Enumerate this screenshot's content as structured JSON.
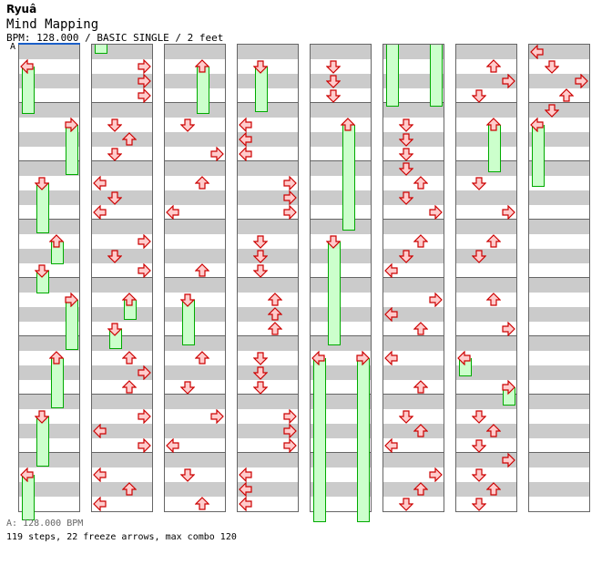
{
  "artist": "Ryuâ",
  "title": "Mind Mapping",
  "meta": "BPM: 128.000 / BASIC SINGLE / 2 feet",
  "bpm_marker": "A",
  "footer_bpm": "A: 128.000 BPM",
  "footer_stats": "119 steps, 22 freeze arrows, max combo 120",
  "colors": {
    "arrow_fill": "#ffcccc",
    "arrow_stroke": "#cc0000",
    "freeze_fill": "#ccffcc",
    "freeze_stroke": "#00aa00",
    "stripe": "#cbcbcb",
    "bpm_line": "#1a5fc8"
  },
  "lanes": [
    "left",
    "down",
    "up",
    "right"
  ],
  "columns": [
    {
      "notes": [
        {
          "lane": 0,
          "row": 1,
          "hold": 3.5
        },
        {
          "lane": 3,
          "row": 5,
          "hold": 3.7
        },
        {
          "lane": 1,
          "row": 9,
          "hold": 3.7
        },
        {
          "lane": 2,
          "row": 13,
          "hold": 1.8
        },
        {
          "lane": 1,
          "row": 15,
          "hold": 1.8
        },
        {
          "lane": 3,
          "row": 17,
          "hold": 3.7
        },
        {
          "lane": 2,
          "row": 21,
          "hold": 3.7
        },
        {
          "lane": 1,
          "row": 25,
          "hold": 3.7
        },
        {
          "lane": 0,
          "row": 29,
          "hold": 3.4
        }
      ]
    },
    {
      "carry": [
        {
          "lane": 0,
          "end": 0.9
        }
      ],
      "notes": [
        {
          "lane": 3,
          "row": 1
        },
        {
          "lane": 3,
          "row": 2
        },
        {
          "lane": 3,
          "row": 3
        },
        {
          "lane": 1,
          "row": 5
        },
        {
          "lane": 2,
          "row": 6
        },
        {
          "lane": 1,
          "row": 7
        },
        {
          "lane": 0,
          "row": 9
        },
        {
          "lane": 1,
          "row": 10
        },
        {
          "lane": 0,
          "row": 11
        },
        {
          "lane": 3,
          "row": 13
        },
        {
          "lane": 1,
          "row": 14
        },
        {
          "lane": 3,
          "row": 15
        },
        {
          "lane": 2,
          "row": 17,
          "hold": 1.6
        },
        {
          "lane": 1,
          "row": 19,
          "hold": 1.6
        },
        {
          "lane": 2,
          "row": 21
        },
        {
          "lane": 3,
          "row": 22
        },
        {
          "lane": 2,
          "row": 23
        },
        {
          "lane": 3,
          "row": 25
        },
        {
          "lane": 0,
          "row": 26
        },
        {
          "lane": 3,
          "row": 27
        },
        {
          "lane": 0,
          "row": 29
        },
        {
          "lane": 2,
          "row": 30
        },
        {
          "lane": 0,
          "row": 31
        }
      ]
    },
    {
      "notes": [
        {
          "lane": 2,
          "row": 1,
          "hold": 3.5
        },
        {
          "lane": 1,
          "row": 5
        },
        {
          "lane": 3,
          "row": 7
        },
        {
          "lane": 2,
          "row": 9
        },
        {
          "lane": 0,
          "row": 11
        },
        {
          "lane": 2,
          "row": 15
        },
        {
          "lane": 1,
          "row": 17,
          "hold": 3.4
        },
        {
          "lane": 2,
          "row": 21
        },
        {
          "lane": 1,
          "row": 23
        },
        {
          "lane": 3,
          "row": 25
        },
        {
          "lane": 0,
          "row": 27
        },
        {
          "lane": 1,
          "row": 29
        },
        {
          "lane": 2,
          "row": 31
        }
      ]
    },
    {
      "notes": [
        {
          "lane": 1,
          "row": 1,
          "hold": 3.4
        },
        {
          "lane": 0,
          "row": 5
        },
        {
          "lane": 0,
          "row": 6
        },
        {
          "lane": 0,
          "row": 7
        },
        {
          "lane": 3,
          "row": 9
        },
        {
          "lane": 3,
          "row": 10
        },
        {
          "lane": 3,
          "row": 11
        },
        {
          "lane": 1,
          "row": 13
        },
        {
          "lane": 1,
          "row": 14
        },
        {
          "lane": 1,
          "row": 15
        },
        {
          "lane": 2,
          "row": 17
        },
        {
          "lane": 2,
          "row": 18
        },
        {
          "lane": 2,
          "row": 19
        },
        {
          "lane": 1,
          "row": 21
        },
        {
          "lane": 1,
          "row": 22
        },
        {
          "lane": 1,
          "row": 23
        },
        {
          "lane": 3,
          "row": 25
        },
        {
          "lane": 3,
          "row": 26
        },
        {
          "lane": 3,
          "row": 27
        },
        {
          "lane": 0,
          "row": 29
        },
        {
          "lane": 0,
          "row": 30
        },
        {
          "lane": 0,
          "row": 31
        }
      ]
    },
    {
      "notes": [
        {
          "lane": 1,
          "row": 1
        },
        {
          "lane": 1,
          "row": 2
        },
        {
          "lane": 1,
          "row": 3
        },
        {
          "lane": 2,
          "row": 5,
          "hold": 7.5
        },
        {
          "lane": 1,
          "row": 13,
          "hold": 7.4
        },
        {
          "lane": 0,
          "row": 21,
          "hold": 11.5
        },
        {
          "lane": 3,
          "row": 21,
          "hold": 11.5
        }
      ]
    },
    {
      "carry": [
        {
          "lane": 0,
          "end": 4.5
        },
        {
          "lane": 3,
          "end": 4.5
        }
      ],
      "notes": [
        {
          "lane": 1,
          "row": 5
        },
        {
          "lane": 1,
          "row": 6
        },
        {
          "lane": 1,
          "row": 7
        },
        {
          "lane": 1,
          "row": 8
        },
        {
          "lane": 2,
          "row": 9
        },
        {
          "lane": 1,
          "row": 10
        },
        {
          "lane": 3,
          "row": 11
        },
        {
          "lane": 2,
          "row": 13
        },
        {
          "lane": 1,
          "row": 14
        },
        {
          "lane": 0,
          "row": 15
        },
        {
          "lane": 3,
          "row": 17
        },
        {
          "lane": 0,
          "row": 18
        },
        {
          "lane": 2,
          "row": 19
        },
        {
          "lane": 0,
          "row": 21
        },
        {
          "lane": 2,
          "row": 23
        },
        {
          "lane": 1,
          "row": 25
        },
        {
          "lane": 2,
          "row": 26
        },
        {
          "lane": 0,
          "row": 27
        },
        {
          "lane": 3,
          "row": 29
        },
        {
          "lane": 2,
          "row": 30
        },
        {
          "lane": 1,
          "row": 31
        }
      ]
    },
    {
      "notes": [
        {
          "lane": 2,
          "row": 1
        },
        {
          "lane": 3,
          "row": 2
        },
        {
          "lane": 1,
          "row": 3
        },
        {
          "lane": 2,
          "row": 5,
          "hold": 3.5
        },
        {
          "lane": 1,
          "row": 9
        },
        {
          "lane": 3,
          "row": 11
        },
        {
          "lane": 2,
          "row": 13
        },
        {
          "lane": 1,
          "row": 14
        },
        {
          "lane": 2,
          "row": 17
        },
        {
          "lane": 3,
          "row": 19
        },
        {
          "lane": 0,
          "row": 21,
          "hold": 1.5
        },
        {
          "lane": 3,
          "row": 23,
          "hold": 1.5
        },
        {
          "lane": 1,
          "row": 25
        },
        {
          "lane": 2,
          "row": 26
        },
        {
          "lane": 1,
          "row": 27
        },
        {
          "lane": 3,
          "row": 28
        },
        {
          "lane": 1,
          "row": 29
        },
        {
          "lane": 2,
          "row": 30
        },
        {
          "lane": 1,
          "row": 31
        }
      ]
    },
    {
      "notes": [
        {
          "lane": 0,
          "row": 0
        },
        {
          "lane": 1,
          "row": 1
        },
        {
          "lane": 3,
          "row": 2
        },
        {
          "lane": 2,
          "row": 3
        },
        {
          "lane": 1,
          "row": 4
        },
        {
          "lane": 0,
          "row": 5,
          "hold": 4.5
        }
      ]
    }
  ]
}
